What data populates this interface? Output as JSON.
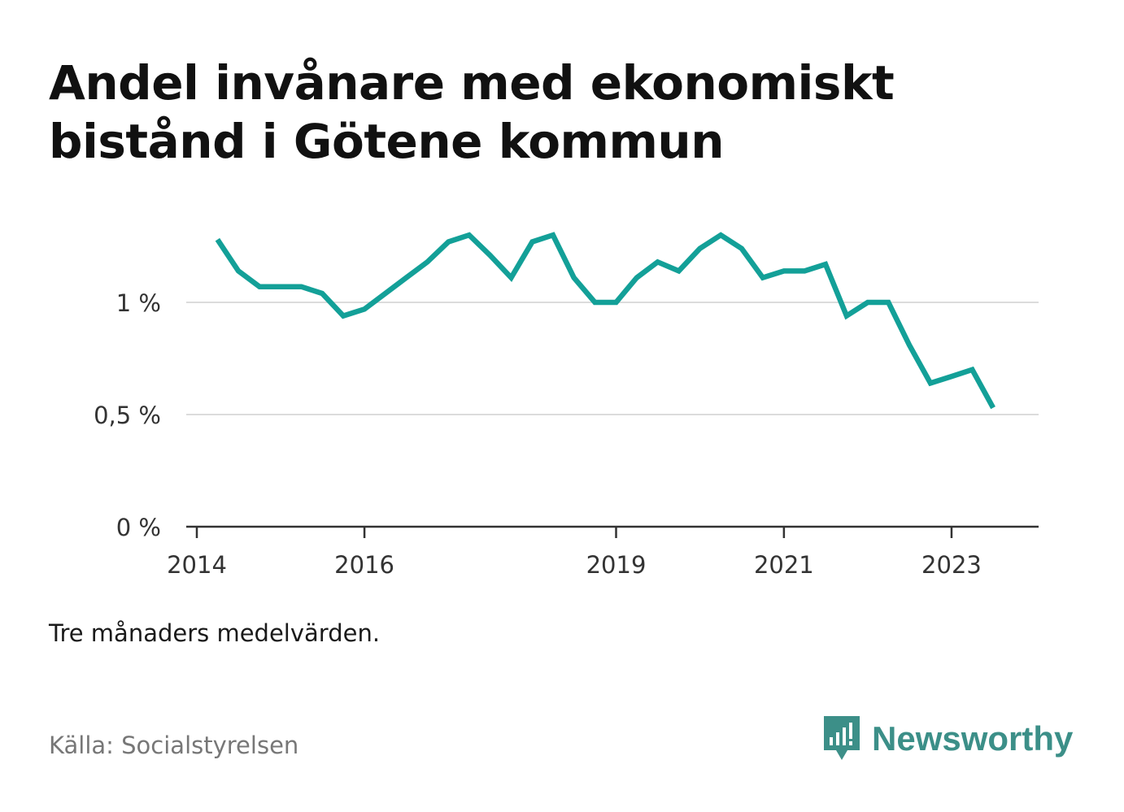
{
  "title": "Andel invånare med ekonomiskt bistånd i Götene kommun",
  "note": "Tre månaders medelvärden.",
  "source": "Källa: Socialstyrelsen",
  "brand": {
    "name": "Newsworthy",
    "icon": "newsworthy-logo-icon",
    "color": "#3c8f88"
  },
  "chart_data": {
    "type": "line",
    "title": "Andel invånare med ekonomiskt bistånd i Götene kommun",
    "xlabel": "",
    "ylabel": "",
    "x_ticks": [
      "2014",
      "2016",
      "2019",
      "2021",
      "2023"
    ],
    "y_ticks": [
      "0 %",
      "0,5 %",
      "1 %"
    ],
    "ylim": [
      0,
      1.4
    ],
    "xlim": [
      "2014-01-01",
      "2024-01-01"
    ],
    "grid": true,
    "legend": "none",
    "series": [
      {
        "color": "#13a098",
        "x": [
          "2014-04-01",
          "2014-07-01",
          "2014-10-01",
          "2015-01-01",
          "2015-04-01",
          "2015-07-01",
          "2015-10-01",
          "2016-01-01",
          "2016-04-01",
          "2016-07-01",
          "2016-10-01",
          "2017-01-01",
          "2017-04-01",
          "2017-07-01",
          "2017-10-01",
          "2018-01-01",
          "2018-04-01",
          "2018-07-01",
          "2018-10-01",
          "2019-01-01",
          "2019-04-01",
          "2019-07-01",
          "2019-10-01",
          "2020-01-01",
          "2020-04-01",
          "2020-07-01",
          "2020-10-01",
          "2021-01-01",
          "2021-04-01",
          "2021-07-01",
          "2021-10-01",
          "2022-01-01",
          "2022-04-01",
          "2022-07-01",
          "2022-10-01",
          "2023-01-01",
          "2023-04-01",
          "2023-07-01"
        ],
        "values": [
          1.28,
          1.14,
          1.07,
          1.07,
          1.07,
          1.04,
          0.94,
          0.97,
          1.04,
          1.11,
          1.18,
          1.27,
          1.3,
          1.21,
          1.11,
          1.27,
          1.3,
          1.11,
          1.0,
          1.0,
          1.11,
          1.18,
          1.14,
          1.24,
          1.3,
          1.24,
          1.11,
          1.14,
          1.14,
          1.17,
          0.94,
          1.0,
          1.0,
          0.81,
          0.64,
          0.67,
          0.7,
          0.53
        ]
      }
    ]
  }
}
